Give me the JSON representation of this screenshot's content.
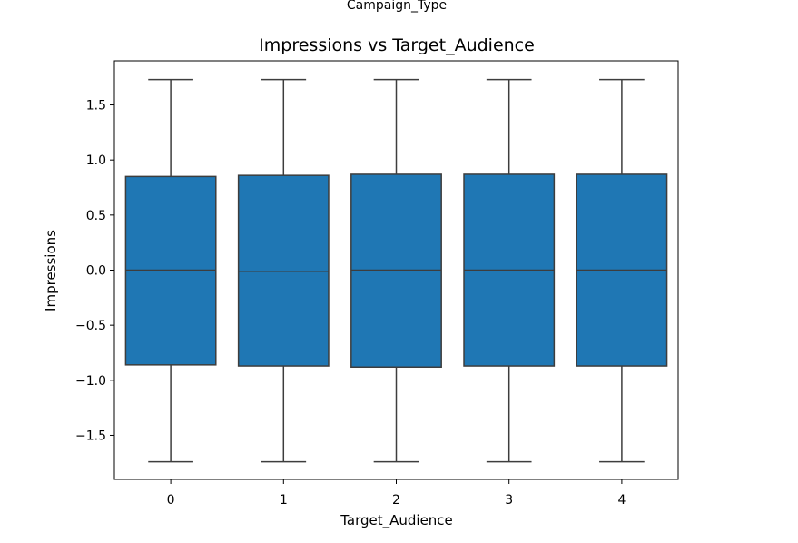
{
  "chart_data": {
    "type": "box",
    "suptitle": "Campaign_Type",
    "title": "Impressions vs Target_Audience",
    "xlabel": "Target_Audience",
    "ylabel": "Impressions",
    "categories": [
      "0",
      "1",
      "2",
      "3",
      "4"
    ],
    "ylim": [
      -1.9,
      1.9
    ],
    "yticks": [
      1.5,
      1.0,
      0.5,
      0.0,
      -0.5,
      -1.0,
      -1.5
    ],
    "ytick_labels": [
      "1.5",
      "1.0",
      "0.5",
      "0.0",
      "−0.5",
      "−1.0",
      "−1.5"
    ],
    "boxes": [
      {
        "category": "0",
        "whisker_low": -1.74,
        "q1": -0.86,
        "median": 0.0,
        "q3": 0.85,
        "whisker_high": 1.73
      },
      {
        "category": "1",
        "whisker_low": -1.74,
        "q1": -0.87,
        "median": -0.01,
        "q3": 0.86,
        "whisker_high": 1.73
      },
      {
        "category": "2",
        "whisker_low": -1.74,
        "q1": -0.88,
        "median": 0.0,
        "q3": 0.87,
        "whisker_high": 1.73
      },
      {
        "category": "3",
        "whisker_low": -1.74,
        "q1": -0.87,
        "median": 0.0,
        "q3": 0.87,
        "whisker_high": 1.73
      },
      {
        "category": "4",
        "whisker_low": -1.74,
        "q1": -0.87,
        "median": 0.0,
        "q3": 0.87,
        "whisker_high": 1.73
      }
    ],
    "box_color": "#1f77b4",
    "line_color": "#3d3d3d",
    "grid": false,
    "legend": "none"
  }
}
